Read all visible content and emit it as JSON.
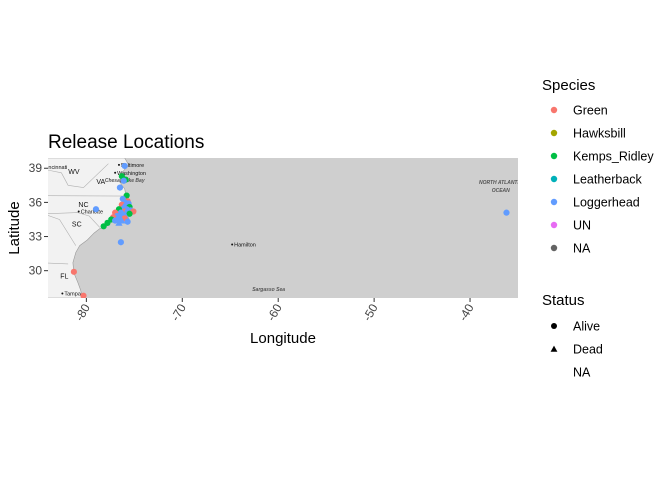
{
  "chart_data": {
    "type": "scatter",
    "title": "Release Locations",
    "xlabel": "Longitude",
    "ylabel": "Latitude",
    "xlim": [
      -84,
      -35
    ],
    "ylim": [
      27.6,
      39.9
    ],
    "x_ticks": [
      -80,
      -70,
      -60,
      -50,
      -40
    ],
    "x_tick_labels": [
      "-80",
      "-70",
      "-60",
      "-50",
      "-40"
    ],
    "y_ticks": [
      30,
      33,
      36,
      39
    ],
    "y_tick_labels": [
      "30",
      "33",
      "36",
      "39"
    ],
    "grid": false,
    "basemap": {
      "land_color": "#f2f2f2",
      "water_color": "#cfcfcf",
      "state_labels": [
        {
          "text": "WV",
          "lon": -81.3,
          "lat": 38.5
        },
        {
          "text": "VA",
          "lon": -78.5,
          "lat": 37.6
        },
        {
          "text": "NC",
          "lon": -80.3,
          "lat": 35.6
        },
        {
          "text": "SC",
          "lon": -81.0,
          "lat": 33.9
        },
        {
          "text": "FL",
          "lon": -82.3,
          "lat": 29.3
        }
      ],
      "place_labels": [
        {
          "text": "Cincinnati",
          "lon": -84.5,
          "lat": 39.1,
          "dot": false
        },
        {
          "text": "Baltimore",
          "lon": -76.6,
          "lat": 39.3,
          "dot": true
        },
        {
          "text": "Washington",
          "lon": -77.0,
          "lat": 38.6,
          "dot": true
        },
        {
          "text": "Charlotte",
          "lon": -80.8,
          "lat": 35.2,
          "dot": true
        },
        {
          "text": "Tampa",
          "lon": -82.5,
          "lat": 28.0,
          "dot": true
        },
        {
          "text": "Hamilton",
          "lon": -64.8,
          "lat": 32.3,
          "dot": true
        }
      ],
      "water_labels": [
        {
          "text": "Chesapeake Bay",
          "lon": -76.0,
          "lat": 37.8
        },
        {
          "text": "Sargasso Sea",
          "lon": -61.0,
          "lat": 28.2
        },
        {
          "text": "NORTH ATLANTIC",
          "lon": -36.8,
          "lat": 37.6
        },
        {
          "text": "OCEAN",
          "lon": -36.8,
          "lat": 36.9
        }
      ]
    },
    "legend": {
      "placement": "right",
      "species_title": "Species",
      "species": [
        {
          "name": "Green",
          "color": "#F8766D"
        },
        {
          "name": "Hawksbill",
          "color": "#A3A500"
        },
        {
          "name": "Kemps_Ridley",
          "color": "#00BF44"
        },
        {
          "name": "Leatherback",
          "color": "#00B0B9"
        },
        {
          "name": "Loggerhead",
          "color": "#619CFF"
        },
        {
          "name": "UN",
          "color": "#E76BF3"
        },
        {
          "name": "NA",
          "color": "#636363"
        }
      ],
      "status_title": "Status",
      "status": [
        {
          "name": "Alive",
          "shape": "circle"
        },
        {
          "name": "Dead",
          "shape": "triangle"
        },
        {
          "name": "NA",
          "shape": "none"
        }
      ]
    },
    "points": [
      {
        "lon": -76.0,
        "lat": 39.2,
        "species": "Loggerhead",
        "status": "Alive"
      },
      {
        "lon": -76.3,
        "lat": 38.3,
        "species": "Kemps_Ridley",
        "status": "Alive"
      },
      {
        "lon": -75.9,
        "lat": 38.0,
        "species": "Kemps_Ridley",
        "status": "Alive"
      },
      {
        "lon": -76.1,
        "lat": 37.9,
        "species": "Loggerhead",
        "status": "Alive"
      },
      {
        "lon": -76.5,
        "lat": 37.3,
        "species": "Loggerhead",
        "status": "Alive"
      },
      {
        "lon": -75.8,
        "lat": 36.6,
        "species": "Kemps_Ridley",
        "status": "Alive"
      },
      {
        "lon": -76.2,
        "lat": 36.3,
        "species": "Loggerhead",
        "status": "Alive"
      },
      {
        "lon": -75.7,
        "lat": 36.1,
        "species": "Green",
        "status": "Alive"
      },
      {
        "lon": -76.0,
        "lat": 36.0,
        "species": "Loggerhead",
        "status": "Alive"
      },
      {
        "lon": -75.6,
        "lat": 35.9,
        "species": "Loggerhead",
        "status": "Alive"
      },
      {
        "lon": -76.3,
        "lat": 35.8,
        "species": "Green",
        "status": "Alive"
      },
      {
        "lon": -75.9,
        "lat": 35.7,
        "species": "Loggerhead",
        "status": "Alive"
      },
      {
        "lon": -75.5,
        "lat": 35.6,
        "species": "Kemps_Ridley",
        "status": "Alive"
      },
      {
        "lon": -76.1,
        "lat": 35.5,
        "species": "Loggerhead",
        "status": "Alive"
      },
      {
        "lon": -75.8,
        "lat": 35.4,
        "species": "Loggerhead",
        "status": "Alive"
      },
      {
        "lon": -76.6,
        "lat": 35.4,
        "species": "Kemps_Ridley",
        "status": "Alive"
      },
      {
        "lon": -75.4,
        "lat": 35.3,
        "species": "Loggerhead",
        "status": "Alive"
      },
      {
        "lon": -76.0,
        "lat": 35.2,
        "species": "Green",
        "status": "Alive"
      },
      {
        "lon": -75.7,
        "lat": 35.2,
        "species": "Loggerhead",
        "status": "Alive"
      },
      {
        "lon": -75.1,
        "lat": 35.2,
        "species": "Green",
        "status": "Alive"
      },
      {
        "lon": -76.4,
        "lat": 35.1,
        "species": "Loggerhead",
        "status": "Alive"
      },
      {
        "lon": -77.0,
        "lat": 35.1,
        "species": "Green",
        "status": "Alive"
      },
      {
        "lon": -75.5,
        "lat": 35.0,
        "species": "Kemps_Ridley",
        "status": "Alive"
      },
      {
        "lon": -76.2,
        "lat": 34.9,
        "species": "Loggerhead",
        "status": "Alive"
      },
      {
        "lon": -76.8,
        "lat": 34.8,
        "species": "Loggerhead",
        "status": "Alive"
      },
      {
        "lon": -75.9,
        "lat": 34.8,
        "species": "Loggerhead",
        "status": "Dead"
      },
      {
        "lon": -76.5,
        "lat": 34.7,
        "species": "Loggerhead",
        "status": "Alive"
      },
      {
        "lon": -77.2,
        "lat": 34.7,
        "species": "Green",
        "status": "Alive"
      },
      {
        "lon": -76.0,
        "lat": 34.6,
        "species": "Green",
        "status": "Alive"
      },
      {
        "lon": -76.7,
        "lat": 34.5,
        "species": "Loggerhead",
        "status": "Alive"
      },
      {
        "lon": -77.4,
        "lat": 34.5,
        "species": "Kemps_Ridley",
        "status": "Alive"
      },
      {
        "lon": -76.3,
        "lat": 34.4,
        "species": "Loggerhead",
        "status": "Dead"
      },
      {
        "lon": -77.0,
        "lat": 34.4,
        "species": "Loggerhead",
        "status": "Alive"
      },
      {
        "lon": -75.7,
        "lat": 34.3,
        "species": "Loggerhead",
        "status": "Alive"
      },
      {
        "lon": -76.6,
        "lat": 34.2,
        "species": "Loggerhead",
        "status": "Dead"
      },
      {
        "lon": -77.8,
        "lat": 34.2,
        "species": "Kemps_Ridley",
        "status": "Alive"
      },
      {
        "lon": -78.2,
        "lat": 33.9,
        "species": "Kemps_Ridley",
        "status": "Alive"
      },
      {
        "lon": -79.0,
        "lat": 35.4,
        "species": "Loggerhead",
        "status": "Alive"
      },
      {
        "lon": -76.4,
        "lat": 32.5,
        "species": "Loggerhead",
        "status": "Alive"
      },
      {
        "lon": -36.2,
        "lat": 35.1,
        "species": "Loggerhead",
        "status": "Alive"
      },
      {
        "lon": -81.3,
        "lat": 29.9,
        "species": "Green",
        "status": "Alive"
      },
      {
        "lon": -80.3,
        "lat": 27.8,
        "species": "Green",
        "status": "Alive"
      }
    ]
  }
}
